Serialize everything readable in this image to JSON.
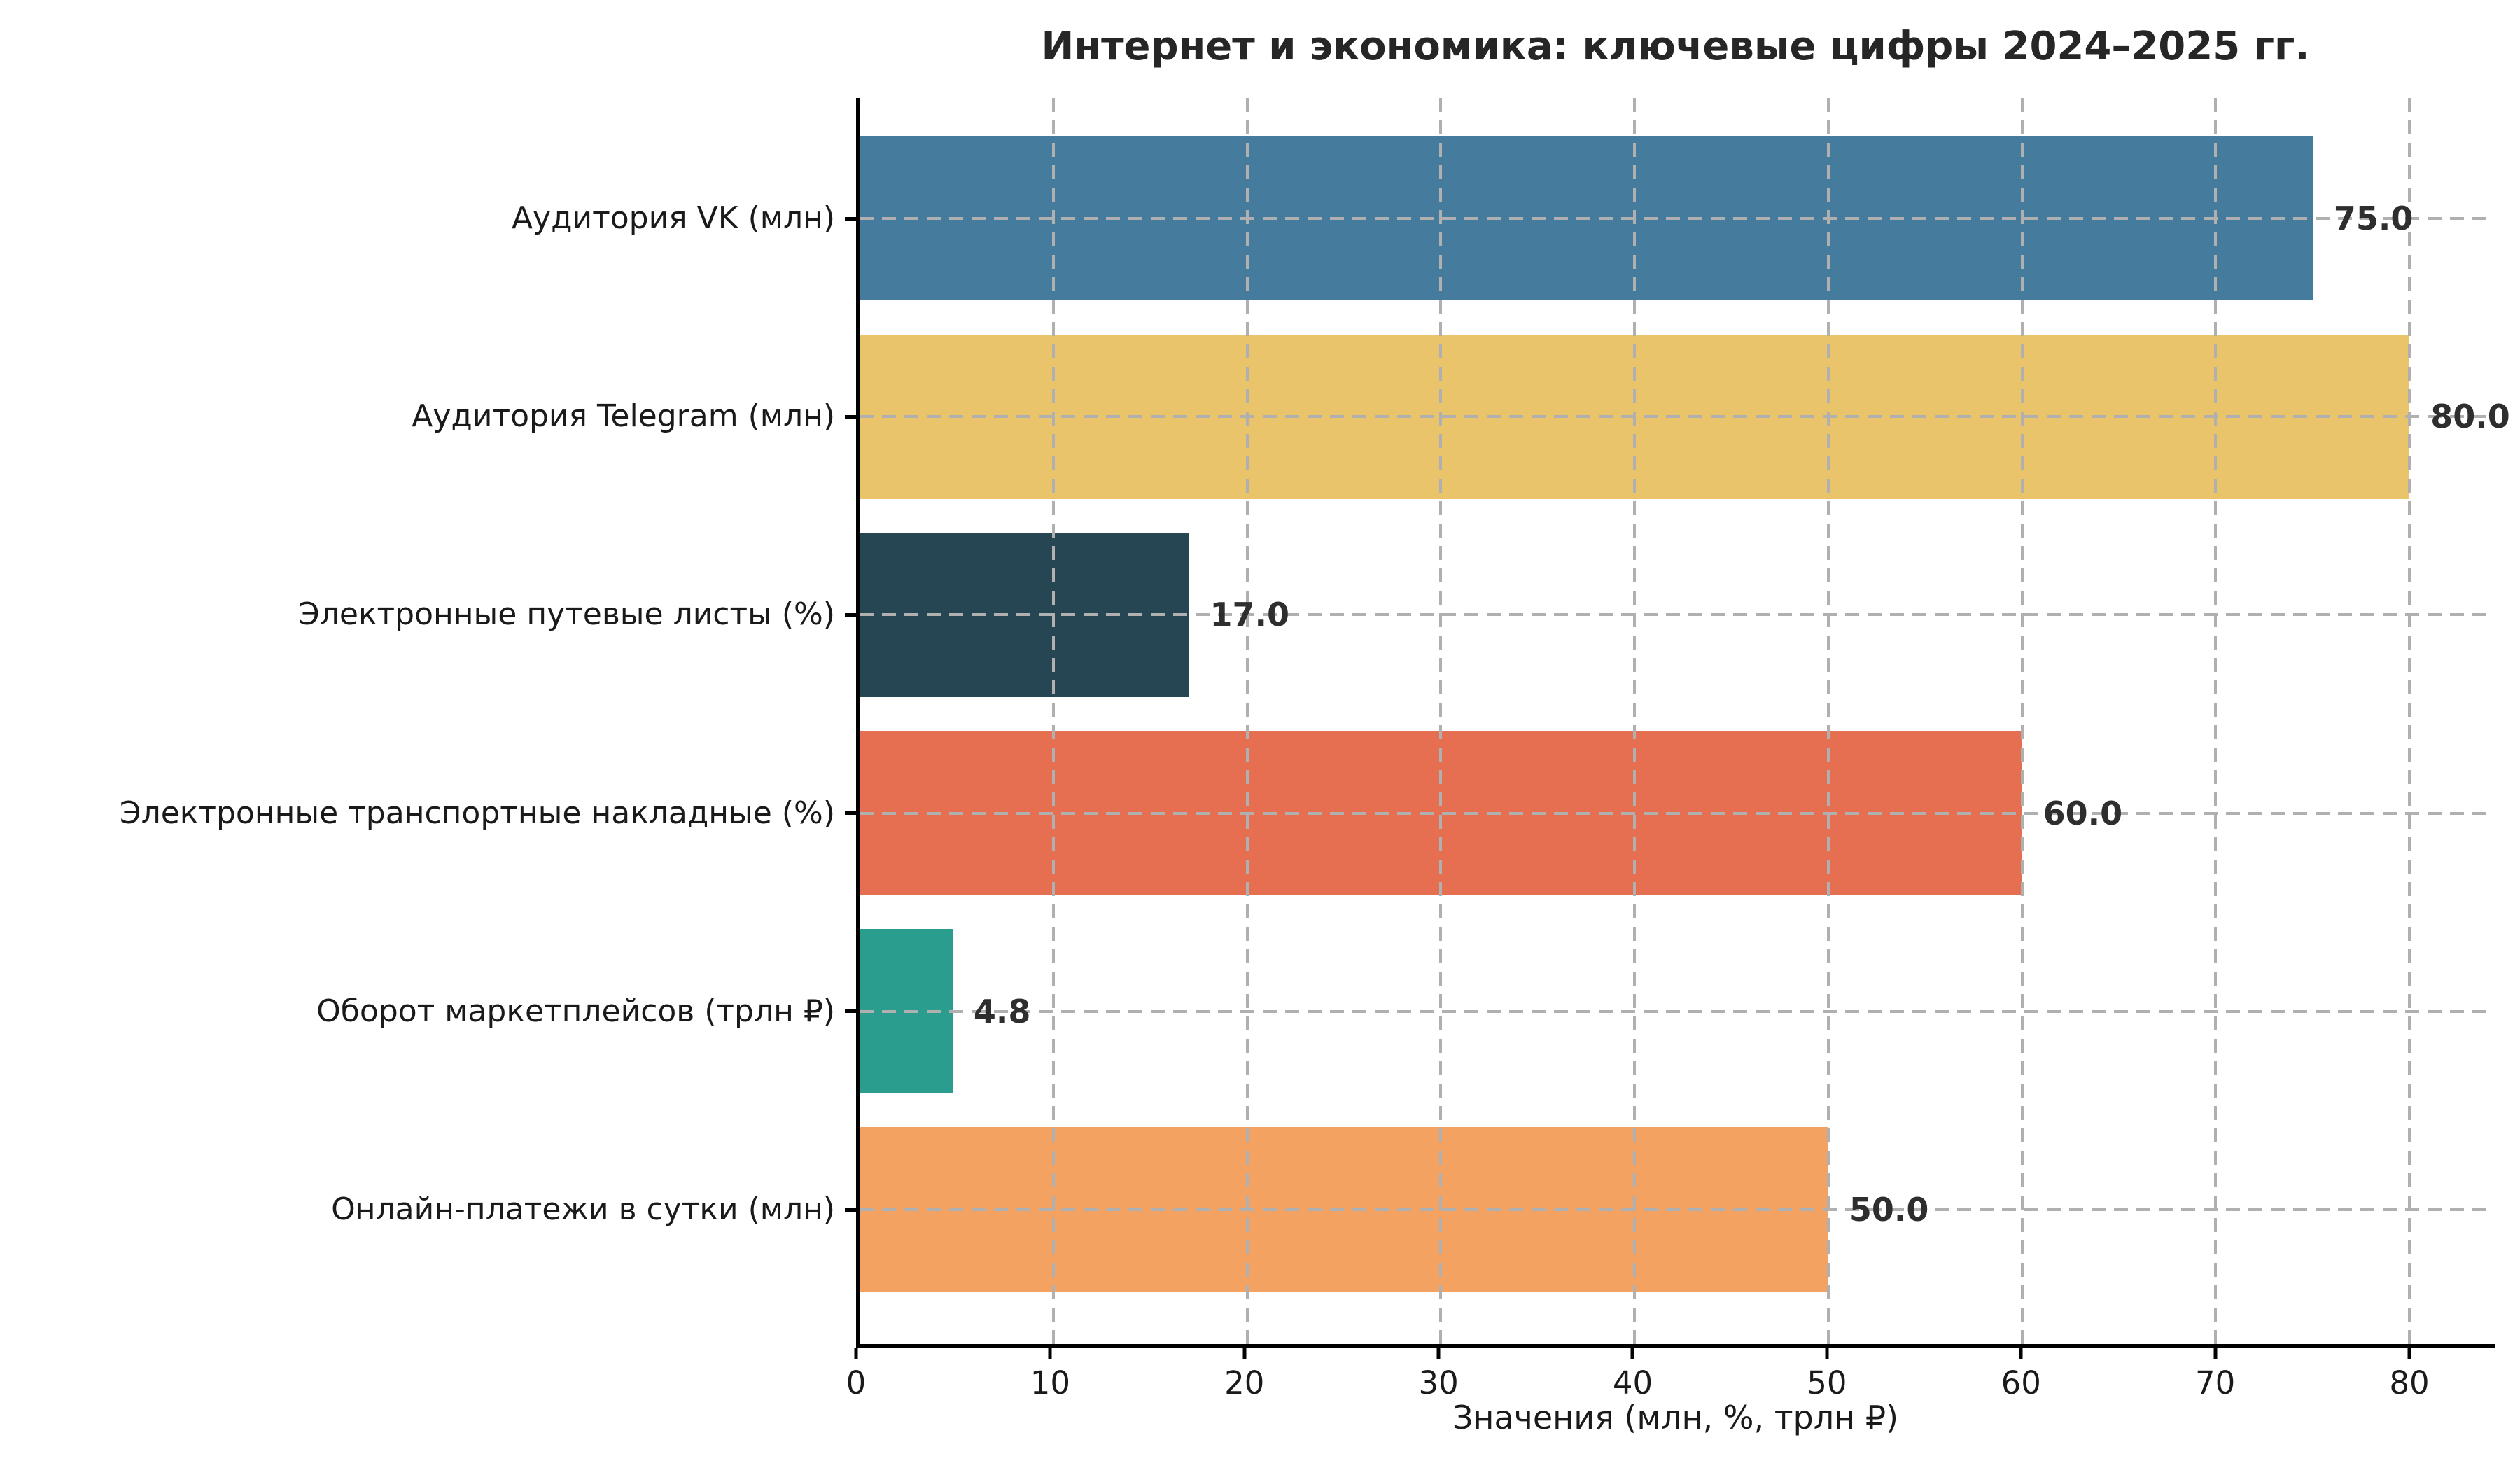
{
  "chart_data": {
    "type": "bar",
    "orientation": "horizontal",
    "title": "Интернет и экономика: ключевые цифры 2024–2025 гг.",
    "xlabel": "Значения (млн, %, трлн ₽)",
    "ylabel": "",
    "categories": [
      "Аудитория VK (млн)",
      "Аудитория Telegram (млн)",
      "Электронные путевые листы (%)",
      "Электронные транспортные накладные (%)",
      "Оборот маркетплейсов (трлн ₽)",
      "Онлайн-платежи в сутки (млн)"
    ],
    "values": [
      75.0,
      80.0,
      17.0,
      60.0,
      4.8,
      50.0
    ],
    "display_values": [
      "75.0",
      "80.0",
      "17.0",
      "60.0",
      "4.8",
      "50.0"
    ],
    "bar_colors": [
      "#457B9D",
      "#E9C46A",
      "#264653",
      "#E76F51",
      "#2A9D8F",
      "#F4A261"
    ],
    "xticks": [
      0,
      10,
      20,
      30,
      40,
      50,
      60,
      70,
      80
    ],
    "xlim": [
      0,
      84.4
    ],
    "grid": {
      "style": "dashed",
      "color": "#b0b0b0",
      "x": true,
      "y": true
    },
    "legend": "none"
  },
  "colors": {
    "background": "#ffffff",
    "spine": "#000000",
    "tick_text": "#1a1a1a",
    "title_text": "#262626",
    "value_text": "#2e2e2e",
    "grid": "#b0b0b0"
  }
}
